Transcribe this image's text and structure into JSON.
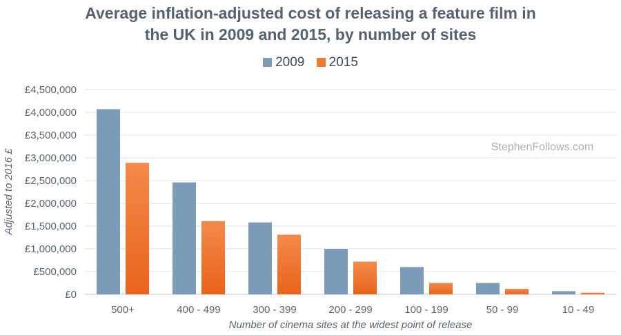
{
  "chart_data": {
    "type": "bar",
    "title_lines": [
      "Average inflation-adjusted cost of releasing a feature film in",
      "the UK in 2009 and 2015, by number of sites"
    ],
    "xlabel": "Number of cinema sites at the widest point of release",
    "ylabel": "Adjusted to 2016 £",
    "ylim": [
      0,
      4500000
    ],
    "yticks": [
      "£0",
      "£500,000",
      "£1,000,000",
      "£1,500,000",
      "£2,000,000",
      "£2,500,000",
      "£3,000,000",
      "£3,500,000",
      "£4,000,000",
      "£4,500,000"
    ],
    "grid": true,
    "legend_position": "top-center",
    "categories": [
      "500+",
      "400 - 499",
      "300 - 399",
      "200 - 299",
      "100 - 199",
      "50 - 99",
      "10 - 49"
    ],
    "series": [
      {
        "name": "2009",
        "color": "#7b9bb8",
        "values": [
          4070000,
          2460000,
          1580000,
          1000000,
          600000,
          250000,
          70000
        ]
      },
      {
        "name": "2015",
        "color": "#f07a2d",
        "values": [
          2890000,
          1610000,
          1310000,
          720000,
          250000,
          120000,
          35000
        ]
      }
    ],
    "watermark": "StephenFollows.com"
  }
}
